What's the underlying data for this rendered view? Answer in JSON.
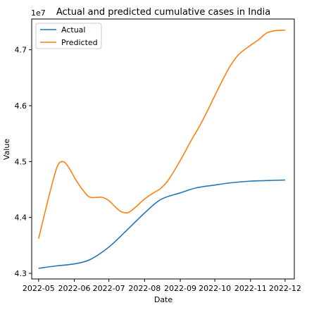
{
  "chart_data": {
    "type": "line",
    "title": "Actual and predicted cumulative cases in India",
    "xlabel": "Date",
    "ylabel": "Value",
    "y_offset_text": "1e7",
    "y_multiplier": 10000000,
    "xlim": [
      "2022-04-25",
      "2022-12-09"
    ],
    "ylim": [
      42.9,
      47.55
    ],
    "x_ticks": [
      "2022-05",
      "2022-06",
      "2022-07",
      "2022-08",
      "2022-09",
      "2022-10",
      "2022-11",
      "2022-12"
    ],
    "x_tick_dates": [
      "2022-05-01",
      "2022-06-01",
      "2022-07-01",
      "2022-08-01",
      "2022-09-01",
      "2022-10-01",
      "2022-11-01",
      "2022-12-01"
    ],
    "y_ticks": [
      4.3,
      4.4,
      4.5,
      4.6,
      4.7
    ],
    "y_tick_values": [
      43.0,
      44.0,
      45.0,
      46.0,
      47.0
    ],
    "grid": false,
    "legend_position": "top-left",
    "series": [
      {
        "name": "Actual",
        "color": "#1f77b4",
        "x": [
          "2022-05-01",
          "2022-05-15",
          "2022-06-01",
          "2022-06-15",
          "2022-07-01",
          "2022-07-15",
          "2022-08-01",
          "2022-08-15",
          "2022-09-01",
          "2022-09-15",
          "2022-10-01",
          "2022-10-15",
          "2022-11-01",
          "2022-11-15",
          "2022-12-01"
        ],
        "y": [
          43.09,
          43.13,
          43.17,
          43.25,
          43.47,
          43.74,
          44.08,
          44.32,
          44.44,
          44.53,
          44.58,
          44.62,
          44.65,
          44.66,
          44.67
        ]
      },
      {
        "name": "Predicted",
        "color": "#ff7f0e",
        "x": [
          "2022-05-01",
          "2022-05-10",
          "2022-05-17",
          "2022-05-22",
          "2022-05-27",
          "2022-06-03",
          "2022-06-10",
          "2022-06-15",
          "2022-06-25",
          "2022-07-01",
          "2022-07-07",
          "2022-07-12",
          "2022-07-18",
          "2022-07-25",
          "2022-08-01",
          "2022-08-08",
          "2022-08-15",
          "2022-08-22",
          "2022-09-01",
          "2022-09-10",
          "2022-09-20",
          "2022-10-01",
          "2022-10-08",
          "2022-10-15",
          "2022-10-22",
          "2022-11-01",
          "2022-11-08",
          "2022-11-15",
          "2022-11-22",
          "2022-12-01"
        ],
        "y": [
          43.62,
          44.38,
          44.9,
          45.0,
          44.9,
          44.65,
          44.45,
          44.36,
          44.36,
          44.3,
          44.18,
          44.1,
          44.09,
          44.2,
          44.33,
          44.43,
          44.52,
          44.68,
          45.02,
          45.36,
          45.72,
          46.18,
          46.47,
          46.73,
          46.92,
          47.08,
          47.18,
          47.3,
          47.34,
          47.35
        ]
      }
    ]
  }
}
